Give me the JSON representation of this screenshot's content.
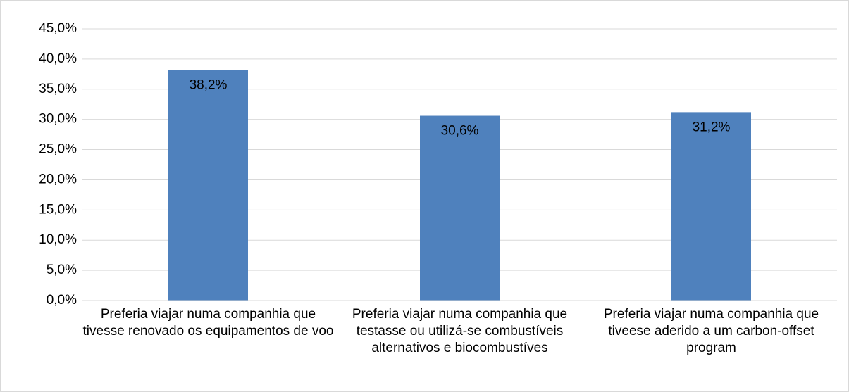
{
  "chart_data": {
    "type": "bar",
    "categories": [
      "Preferia viajar numa companhia que tivesse renovado os equipamentos de voo",
      "Preferia viajar numa companhia que testasse ou utilizá-se combustíveis alternativos e biocombustíves",
      "Preferia viajar numa companhia que tiveese aderido a um carbon-offset program"
    ],
    "values": [
      38.2,
      30.6,
      31.2
    ],
    "value_labels": [
      "38,2%",
      "30,6%",
      "31,2%"
    ],
    "color": "#4f81bd",
    "ylim": [
      0,
      45
    ],
    "yticks": [
      {
        "value": 0,
        "label": "0,0%"
      },
      {
        "value": 5,
        "label": "5,0%"
      },
      {
        "value": 10,
        "label": "10,0%"
      },
      {
        "value": 15,
        "label": "15,0%"
      },
      {
        "value": 20,
        "label": "20,0%"
      },
      {
        "value": 25,
        "label": "25,0%"
      },
      {
        "value": 30,
        "label": "30,0%"
      },
      {
        "value": 35,
        "label": "35,0%"
      },
      {
        "value": 40,
        "label": "40,0%"
      },
      {
        "value": 45,
        "label": "45,0%"
      }
    ],
    "grid": true
  }
}
